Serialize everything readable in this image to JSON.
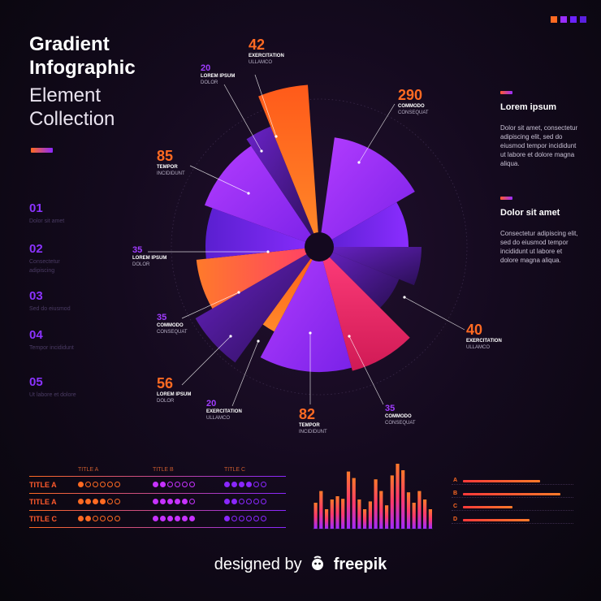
{
  "heading": {
    "line1": "Gradient",
    "line2": "Infographic",
    "line3": "Element",
    "line4": "Collection"
  },
  "steps": [
    {
      "num": "01",
      "text": "Dolor sit amet"
    },
    {
      "num": "02",
      "text": "Consectetur adipiscing"
    },
    {
      "num": "03",
      "text": "Sed do eiusmod"
    },
    {
      "num": "04",
      "text": "Tempor incididunt"
    },
    {
      "num": "05",
      "text": "Ut labore et dolore"
    }
  ],
  "right_panel": [
    {
      "title": "Lorem ipsum",
      "body": "Dolor sit amet, consectetur adipiscing elit, sed do eiusmod tempor incididunt ut labore et dolore magna aliqua."
    },
    {
      "title": "Dolor sit amet",
      "body": "Consectetur adipiscing elit, sed do eiusmod tempor incididunt ut labore et dolore magna aliqua."
    }
  ],
  "table": {
    "columns": [
      "TITLE A",
      "TITLE B",
      "TITLE C"
    ],
    "rows": [
      {
        "title": "TITLE A",
        "ratings": [
          1,
          2,
          4
        ]
      },
      {
        "title": "TITLE A",
        "ratings": [
          4,
          5,
          2
        ]
      },
      {
        "title": "TITLE C",
        "ratings": [
          2,
          6,
          1
        ]
      }
    ],
    "max": 6
  },
  "hbars": {
    "labels": [
      "A",
      "B",
      "C",
      "D"
    ],
    "values": [
      0.7,
      0.88,
      0.45,
      0.6
    ]
  },
  "footer": {
    "prefix": "designed by",
    "brand": "freepik"
  },
  "colors": {
    "orange": "#ff6a22",
    "purple": "#8a27ff",
    "magenta": "#ff2f7a"
  },
  "chart_data": [
    {
      "type": "pie",
      "labels": [
        {
          "value": "42",
          "line1": "EXERCITATION",
          "line2": "ULLAMCO"
        },
        {
          "value": "290",
          "line1": "COMMODO",
          "line2": "CONSEQUAT"
        },
        {
          "value": "40",
          "line1": "EXERCITATION",
          "line2": "ULLAMCO"
        },
        {
          "value": "35",
          "line1": "COMMODO",
          "line2": "CONSEQUAT"
        },
        {
          "value": "82",
          "line1": "TEMPOR",
          "line2": "INCIDIDUNT"
        },
        {
          "value": "20",
          "line1": "EXERCITATION",
          "line2": "ULLAMCO"
        },
        {
          "value": "56",
          "line1": "LOREM IPSUM",
          "line2": "DOLOR"
        },
        {
          "value": "35",
          "line1": "COMMODO",
          "line2": "CONSEQUAT"
        },
        {
          "value": "35",
          "line1": "LOREM IPSUM",
          "line2": "DOLOR"
        },
        {
          "value": "85",
          "line1": "TEMPOR",
          "line2": "INCIDIDUNT"
        },
        {
          "value": "20",
          "line1": "LOREM IPSUM",
          "line2": "DOLOR"
        }
      ]
    },
    {
      "type": "bar",
      "values": [
        40,
        58,
        30,
        45,
        50,
        46,
        88,
        78,
        45,
        30,
        42,
        76,
        58,
        36,
        82,
        100,
        90,
        56,
        40,
        58,
        45,
        30
      ]
    }
  ]
}
